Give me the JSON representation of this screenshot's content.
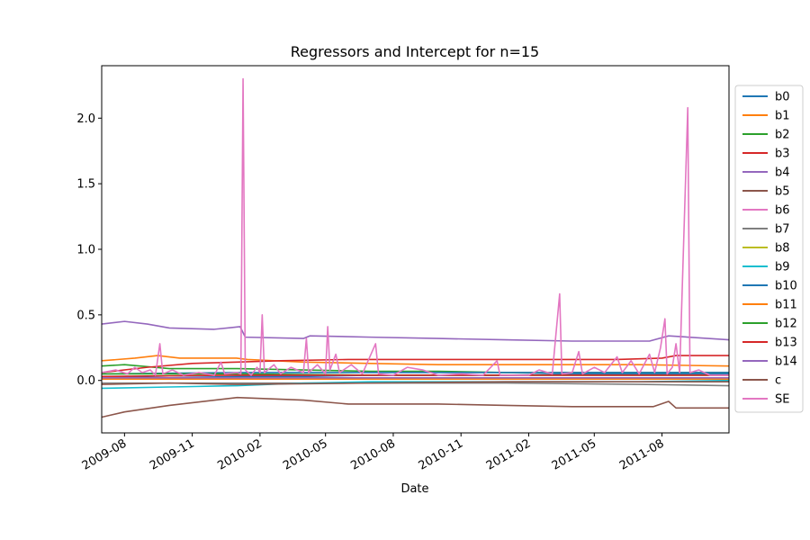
{
  "chart_data": {
    "type": "line",
    "title": "Regressors and Intercept for n=15",
    "xlabel": "Date",
    "ylabel": "",
    "x_range": [
      "2009-07-01",
      "2011-10-31"
    ],
    "ylim": [
      -0.4,
      2.4
    ],
    "x_ticks": [
      {
        "date": "2009-08-01",
        "label": "2009-08"
      },
      {
        "date": "2009-11-01",
        "label": "2009-11"
      },
      {
        "date": "2010-02-01",
        "label": "2010-02"
      },
      {
        "date": "2010-05-01",
        "label": "2010-05"
      },
      {
        "date": "2010-08-01",
        "label": "2010-08"
      },
      {
        "date": "2010-11-01",
        "label": "2010-11"
      },
      {
        "date": "2011-02-01",
        "label": "2011-02"
      },
      {
        "date": "2011-05-01",
        "label": "2011-05"
      },
      {
        "date": "2011-08-01",
        "label": "2011-08"
      }
    ],
    "y_ticks": [
      0.0,
      0.5,
      1.0,
      1.5,
      2.0
    ],
    "y_tick_labels": [
      "0.0",
      "0.5",
      "1.0",
      "1.5",
      "2.0"
    ],
    "grid": false,
    "legend_position": "right",
    "series": [
      {
        "name": "b0",
        "color": "#1f77b4",
        "points": [
          [
            "2009-07-01",
            0.03
          ],
          [
            "2009-10-01",
            0.02
          ],
          [
            "2010-01-01",
            0.03
          ],
          [
            "2010-04-01",
            0.03
          ],
          [
            "2010-07-01",
            0.04
          ],
          [
            "2010-10-01",
            0.04
          ],
          [
            "2011-01-01",
            0.04
          ],
          [
            "2011-04-01",
            0.05
          ],
          [
            "2011-07-01",
            0.05
          ],
          [
            "2011-10-31",
            0.05
          ]
        ]
      },
      {
        "name": "b1",
        "color": "#ff7f0e",
        "points": [
          [
            "2009-07-01",
            0.15
          ],
          [
            "2009-08-15",
            0.17
          ],
          [
            "2009-09-15",
            0.19
          ],
          [
            "2009-10-15",
            0.17
          ],
          [
            "2009-12-31",
            0.17
          ],
          [
            "2010-01-15",
            0.16
          ],
          [
            "2010-04-01",
            0.14
          ],
          [
            "2010-07-01",
            0.13
          ],
          [
            "2010-10-01",
            0.12
          ],
          [
            "2011-01-01",
            0.12
          ],
          [
            "2011-04-01",
            0.12
          ],
          [
            "2011-07-01",
            0.12
          ],
          [
            "2011-10-31",
            0.11
          ]
        ]
      },
      {
        "name": "b2",
        "color": "#2ca02c",
        "points": [
          [
            "2009-07-01",
            0.11
          ],
          [
            "2009-08-01",
            0.12
          ],
          [
            "2009-10-01",
            0.09
          ],
          [
            "2010-01-01",
            0.09
          ],
          [
            "2010-04-01",
            0.08
          ],
          [
            "2010-07-01",
            0.07
          ],
          [
            "2010-10-01",
            0.07
          ],
          [
            "2011-01-01",
            0.06
          ],
          [
            "2011-04-01",
            0.06
          ],
          [
            "2011-07-01",
            0.06
          ],
          [
            "2011-10-31",
            0.06
          ]
        ]
      },
      {
        "name": "b3",
        "color": "#d62728",
        "points": [
          [
            "2009-07-01",
            0.06
          ],
          [
            "2009-09-01",
            0.1
          ],
          [
            "2009-11-01",
            0.13
          ],
          [
            "2010-01-01",
            0.14
          ],
          [
            "2010-03-01",
            0.15
          ],
          [
            "2010-06-01",
            0.16
          ],
          [
            "2010-09-01",
            0.16
          ],
          [
            "2010-12-01",
            0.16
          ],
          [
            "2011-03-01",
            0.16
          ],
          [
            "2011-06-01",
            0.16
          ],
          [
            "2011-08-01",
            0.17
          ],
          [
            "2011-08-20",
            0.19
          ],
          [
            "2011-10-31",
            0.19
          ]
        ]
      },
      {
        "name": "b4",
        "color": "#9467bd",
        "points": [
          [
            "2009-07-01",
            0.43
          ],
          [
            "2009-08-01",
            0.45
          ],
          [
            "2009-09-01",
            0.43
          ],
          [
            "2009-10-01",
            0.4
          ],
          [
            "2009-12-01",
            0.39
          ],
          [
            "2010-01-05",
            0.41
          ],
          [
            "2010-01-12",
            0.33
          ],
          [
            "2010-04-01",
            0.32
          ],
          [
            "2010-04-10",
            0.34
          ],
          [
            "2010-07-01",
            0.33
          ],
          [
            "2010-10-01",
            0.32
          ],
          [
            "2011-01-01",
            0.31
          ],
          [
            "2011-04-01",
            0.3
          ],
          [
            "2011-07-15",
            0.3
          ],
          [
            "2011-08-10",
            0.34
          ],
          [
            "2011-10-31",
            0.31
          ]
        ]
      },
      {
        "name": "b5",
        "color": "#8c564b",
        "points": [
          [
            "2009-07-01",
            -0.28
          ],
          [
            "2009-08-01",
            -0.24
          ],
          [
            "2009-10-01",
            -0.19
          ],
          [
            "2010-01-01",
            -0.13
          ],
          [
            "2010-04-01",
            -0.15
          ],
          [
            "2010-06-01",
            -0.18
          ],
          [
            "2010-10-01",
            -0.18
          ],
          [
            "2011-01-01",
            -0.19
          ],
          [
            "2011-04-01",
            -0.2
          ],
          [
            "2011-07-20",
            -0.2
          ],
          [
            "2011-08-10",
            -0.16
          ],
          [
            "2011-08-20",
            -0.21
          ],
          [
            "2011-10-31",
            -0.21
          ]
        ]
      },
      {
        "name": "b6",
        "color": "#e377c2",
        "points": [
          [
            "2009-07-01",
            0.02
          ],
          [
            "2010-01-01",
            0.02
          ],
          [
            "2011-01-01",
            0.02
          ],
          [
            "2011-10-31",
            0.02
          ]
        ]
      },
      {
        "name": "b7",
        "color": "#7f7f7f",
        "points": [
          [
            "2009-07-01",
            -0.02
          ],
          [
            "2010-01-01",
            -0.02
          ],
          [
            "2010-07-01",
            -0.02
          ],
          [
            "2011-01-01",
            -0.02
          ],
          [
            "2011-07-01",
            -0.03
          ],
          [
            "2011-10-31",
            -0.04
          ]
        ]
      },
      {
        "name": "b8",
        "color": "#bcbd22",
        "points": [
          [
            "2009-07-01",
            0.01
          ],
          [
            "2010-01-01",
            0.01
          ],
          [
            "2011-01-01",
            0.01
          ],
          [
            "2011-10-31",
            0.02
          ]
        ]
      },
      {
        "name": "b9",
        "color": "#17becf",
        "points": [
          [
            "2009-07-01",
            -0.06
          ],
          [
            "2009-10-01",
            -0.05
          ],
          [
            "2010-01-01",
            -0.04
          ],
          [
            "2010-04-01",
            -0.02
          ],
          [
            "2010-07-01",
            -0.01
          ],
          [
            "2011-01-01",
            -0.01
          ],
          [
            "2011-07-01",
            -0.01
          ],
          [
            "2011-10-31",
            0.0
          ]
        ]
      },
      {
        "name": "b10",
        "color": "#1f77b4",
        "points": [
          [
            "2009-07-01",
            0.05
          ],
          [
            "2010-01-01",
            0.06
          ],
          [
            "2010-07-01",
            0.06
          ],
          [
            "2011-01-01",
            0.06
          ],
          [
            "2011-10-31",
            0.06
          ]
        ]
      },
      {
        "name": "b11",
        "color": "#ff7f0e",
        "points": [
          [
            "2009-07-01",
            0.01
          ],
          [
            "2010-01-01",
            0.01
          ],
          [
            "2011-01-01",
            0.01
          ],
          [
            "2011-10-31",
            0.01
          ]
        ]
      },
      {
        "name": "b12",
        "color": "#2ca02c",
        "points": [
          [
            "2009-07-01",
            0.05
          ],
          [
            "2010-01-01",
            0.05
          ],
          [
            "2010-07-01",
            0.04
          ],
          [
            "2011-01-01",
            0.04
          ],
          [
            "2011-10-31",
            0.04
          ]
        ]
      },
      {
        "name": "b13",
        "color": "#d62728",
        "points": [
          [
            "2009-07-01",
            0.03
          ],
          [
            "2010-01-01",
            0.04
          ],
          [
            "2011-01-01",
            0.04
          ],
          [
            "2011-10-31",
            0.04
          ]
        ]
      },
      {
        "name": "b14",
        "color": "#9467bd",
        "points": [
          [
            "2009-07-01",
            0.02
          ],
          [
            "2010-01-01",
            0.02
          ],
          [
            "2011-01-01",
            0.02
          ],
          [
            "2011-10-31",
            0.02
          ]
        ]
      },
      {
        "name": "c",
        "color": "#8c564b",
        "points": [
          [
            "2009-07-01",
            -0.03
          ],
          [
            "2009-10-01",
            -0.02
          ],
          [
            "2010-01-01",
            -0.03
          ],
          [
            "2010-07-01",
            -0.02
          ],
          [
            "2011-01-01",
            -0.01
          ],
          [
            "2011-10-31",
            -0.01
          ]
        ]
      },
      {
        "name": "SE",
        "color": "#e377c2",
        "points": [
          [
            "2009-07-01",
            0.06
          ],
          [
            "2009-07-20",
            0.08
          ],
          [
            "2009-08-05",
            0.05
          ],
          [
            "2009-08-15",
            0.1
          ],
          [
            "2009-08-25",
            0.06
          ],
          [
            "2009-09-05",
            0.08
          ],
          [
            "2009-09-12",
            0.04
          ],
          [
            "2009-09-18",
            0.28
          ],
          [
            "2009-09-22",
            0.05
          ],
          [
            "2009-10-05",
            0.08
          ],
          [
            "2009-10-20",
            0.04
          ],
          [
            "2009-11-10",
            0.06
          ],
          [
            "2009-12-01",
            0.04
          ],
          [
            "2009-12-10",
            0.14
          ],
          [
            "2009-12-15",
            0.05
          ],
          [
            "2010-01-01",
            0.06
          ],
          [
            "2010-01-06",
            0.05
          ],
          [
            "2010-01-09",
            2.3
          ],
          [
            "2010-01-12",
            0.08
          ],
          [
            "2010-01-20",
            0.04
          ],
          [
            "2010-01-28",
            0.1
          ],
          [
            "2010-02-01",
            0.06
          ],
          [
            "2010-02-04",
            0.5
          ],
          [
            "2010-02-07",
            0.06
          ],
          [
            "2010-02-20",
            0.12
          ],
          [
            "2010-03-01",
            0.05
          ],
          [
            "2010-03-15",
            0.1
          ],
          [
            "2010-04-01",
            0.06
          ],
          [
            "2010-04-05",
            0.32
          ],
          [
            "2010-04-08",
            0.06
          ],
          [
            "2010-04-20",
            0.12
          ],
          [
            "2010-05-01",
            0.05
          ],
          [
            "2010-05-04",
            0.41
          ],
          [
            "2010-05-07",
            0.08
          ],
          [
            "2010-05-15",
            0.2
          ],
          [
            "2010-05-20",
            0.06
          ],
          [
            "2010-06-05",
            0.12
          ],
          [
            "2010-06-20",
            0.05
          ],
          [
            "2010-07-08",
            0.28
          ],
          [
            "2010-07-12",
            0.05
          ],
          [
            "2010-08-01",
            0.04
          ],
          [
            "2010-08-20",
            0.1
          ],
          [
            "2010-09-10",
            0.08
          ],
          [
            "2010-10-01",
            0.04
          ],
          [
            "2010-11-01",
            0.05
          ],
          [
            "2010-12-01",
            0.04
          ],
          [
            "2010-12-20",
            0.15
          ],
          [
            "2010-12-24",
            0.04
          ],
          [
            "2011-02-01",
            0.04
          ],
          [
            "2011-02-15",
            0.08
          ],
          [
            "2011-03-05",
            0.05
          ],
          [
            "2011-03-15",
            0.66
          ],
          [
            "2011-03-18",
            0.05
          ],
          [
            "2011-04-01",
            0.06
          ],
          [
            "2011-04-10",
            0.22
          ],
          [
            "2011-04-15",
            0.05
          ],
          [
            "2011-05-01",
            0.1
          ],
          [
            "2011-05-15",
            0.06
          ],
          [
            "2011-06-01",
            0.18
          ],
          [
            "2011-06-08",
            0.06
          ],
          [
            "2011-06-20",
            0.15
          ],
          [
            "2011-07-01",
            0.05
          ],
          [
            "2011-07-15",
            0.2
          ],
          [
            "2011-07-22",
            0.06
          ],
          [
            "2011-07-30",
            0.25
          ],
          [
            "2011-08-05",
            0.47
          ],
          [
            "2011-08-08",
            0.05
          ],
          [
            "2011-08-15",
            0.1
          ],
          [
            "2011-08-20",
            0.28
          ],
          [
            "2011-08-25",
            0.06
          ],
          [
            "2011-09-05",
            2.08
          ],
          [
            "2011-09-08",
            0.06
          ],
          [
            "2011-09-20",
            0.08
          ],
          [
            "2011-10-05",
            0.04
          ],
          [
            "2011-10-31",
            0.04
          ]
        ]
      }
    ]
  }
}
